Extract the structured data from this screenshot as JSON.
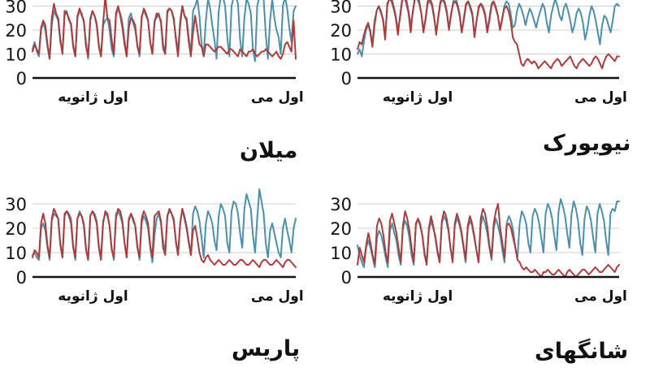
{
  "chart_data": [
    {
      "type": "line",
      "title": "میلان",
      "x_labels": [
        "اول ژانویه",
        "اول می"
      ],
      "ylim": [
        0,
        40
      ],
      "yticks": [
        0,
        10,
        20,
        30
      ],
      "series": [
        {
          "color": "#4a90ad",
          "values": [
            12,
            15,
            11,
            9,
            20,
            23,
            20,
            13,
            8,
            22,
            28,
            26,
            24,
            15,
            11,
            26,
            28,
            24,
            23,
            14,
            9,
            25,
            28,
            27,
            23,
            15,
            8,
            25,
            28,
            26,
            23,
            14,
            9,
            22,
            24,
            25,
            20,
            12,
            9,
            26,
            29,
            27,
            23,
            16,
            9,
            25,
            27,
            23,
            20,
            14,
            9,
            26,
            28,
            26,
            24,
            15,
            10,
            24,
            25,
            27,
            23,
            12,
            10,
            27,
            29,
            28,
            24,
            17,
            11,
            24,
            30,
            26,
            25,
            17,
            10,
            28,
            30,
            33,
            26,
            14,
            10,
            24,
            33,
            29,
            22,
            16,
            8,
            28,
            36,
            35,
            30,
            17,
            9,
            30,
            40,
            35,
            31,
            16,
            9,
            25,
            33,
            31,
            27,
            12,
            7,
            30,
            35,
            34,
            33,
            18,
            8,
            24,
            33,
            25,
            20,
            17,
            10,
            30,
            34,
            29,
            21,
            15,
            28,
            30
          ]
        },
        {
          "color": "#b03a3a",
          "values": [
            11,
            14,
            12,
            10,
            21,
            24,
            22,
            14,
            8,
            25,
            31,
            27,
            25,
            16,
            10,
            28,
            27,
            25,
            22,
            13,
            9,
            26,
            29,
            26,
            24,
            13,
            9,
            24,
            28,
            26,
            22,
            13,
            9,
            23,
            35,
            25,
            24,
            16,
            10,
            27,
            30,
            26,
            21,
            14,
            9,
            21,
            25,
            24,
            22,
            13,
            10,
            25,
            29,
            27,
            24,
            15,
            10,
            23,
            27,
            26,
            24,
            14,
            10,
            28,
            29,
            28,
            25,
            16,
            9,
            22,
            30,
            26,
            24,
            15,
            9,
            19,
            26,
            20,
            14,
            13,
            9,
            14,
            14,
            13,
            12,
            11,
            12,
            13,
            13,
            12,
            11,
            10,
            12,
            12,
            11,
            10,
            9,
            12,
            11,
            10,
            9,
            11,
            11,
            12,
            10,
            9,
            10,
            11,
            11,
            12,
            11,
            10,
            9,
            10,
            11,
            9,
            8,
            10,
            14,
            15,
            13,
            11,
            24,
            8
          ]
        }
      ]
    },
    {
      "type": "line",
      "title": "نیویورک",
      "x_labels": [
        "اول ژانویه",
        "اول می"
      ],
      "ylim": [
        0,
        30
      ],
      "yticks": [
        0,
        10,
        20,
        30
      ],
      "series": [
        {
          "color": "#4a90ad",
          "values": [
            10,
            12,
            9,
            15,
            20,
            22,
            20,
            14,
            24,
            28,
            30,
            27,
            25,
            17,
            30,
            33,
            34,
            30,
            26,
            20,
            25,
            32,
            35,
            33,
            28,
            22,
            27,
            34,
            33,
            31,
            27,
            20,
            24,
            31,
            32,
            30,
            25,
            19,
            25,
            31,
            33,
            32,
            28,
            21,
            26,
            32,
            34,
            31,
            27,
            19,
            24,
            30,
            32,
            29,
            26,
            18,
            24,
            29,
            31,
            30,
            27,
            20,
            25,
            31,
            32,
            30,
            26,
            20,
            24,
            30,
            32,
            31,
            27,
            21,
            22,
            28,
            31,
            29,
            26,
            22,
            26,
            29,
            27,
            24,
            21,
            25,
            28,
            31,
            29,
            23,
            19,
            26,
            30,
            33,
            30,
            26,
            24,
            29,
            31,
            28,
            24,
            19,
            22,
            27,
            29,
            27,
            23,
            16,
            20,
            26,
            30,
            28,
            24,
            19,
            14,
            22,
            26,
            25,
            22,
            19,
            24,
            30,
            31,
            30
          ]
        },
        {
          "color": "#b03a3a",
          "values": [
            12,
            15,
            14,
            18,
            21,
            23,
            19,
            13,
            22,
            28,
            30,
            28,
            24,
            16,
            31,
            33,
            32,
            29,
            25,
            18,
            26,
            33,
            34,
            31,
            27,
            19,
            28,
            33,
            34,
            32,
            27,
            19,
            25,
            32,
            33,
            31,
            26,
            18,
            26,
            32,
            33,
            31,
            27,
            20,
            27,
            31,
            32,
            30,
            26,
            19,
            25,
            31,
            32,
            30,
            27,
            17,
            24,
            30,
            31,
            29,
            26,
            19,
            24,
            30,
            32,
            29,
            26,
            20,
            25,
            29,
            30,
            28,
            24,
            17,
            15,
            14,
            10,
            6,
            5,
            7,
            8,
            7,
            6,
            7,
            6,
            4,
            5,
            6,
            7,
            6,
            5,
            4,
            6,
            7,
            8,
            7,
            5,
            6,
            7,
            8,
            9,
            7,
            5,
            4,
            6,
            7,
            8,
            7,
            6,
            5,
            6,
            8,
            9,
            8,
            6,
            4,
            7,
            9,
            10,
            9,
            8,
            7,
            9,
            9
          ]
        }
      ]
    },
    {
      "type": "line",
      "title": "پاریس",
      "x_labels": [
        "اول ژانویه",
        "اول می"
      ],
      "ylim": [
        0,
        30
      ],
      "yticks": [
        0,
        10,
        20,
        30
      ],
      "series": [
        {
          "color": "#4a90ad",
          "values": [
            9,
            10,
            8,
            7,
            20,
            22,
            19,
            12,
            7,
            23,
            26,
            25,
            24,
            14,
            8,
            25,
            27,
            26,
            24,
            13,
            7,
            24,
            27,
            25,
            22,
            12,
            7,
            25,
            27,
            26,
            23,
            13,
            8,
            23,
            26,
            25,
            21,
            12,
            7,
            26,
            27,
            25,
            22,
            14,
            8,
            24,
            26,
            23,
            21,
            13,
            7,
            22,
            25,
            23,
            20,
            12,
            6,
            17,
            24,
            26,
            22,
            15,
            10,
            25,
            27,
            26,
            24,
            14,
            9,
            22,
            28,
            25,
            21,
            15,
            9,
            26,
            29,
            27,
            23,
            16,
            8,
            22,
            27,
            25,
            22,
            15,
            11,
            25,
            30,
            28,
            25,
            14,
            10,
            27,
            31,
            30,
            26,
            18,
            12,
            28,
            34,
            31,
            28,
            17,
            10,
            24,
            36,
            31,
            26,
            14,
            8,
            19,
            22,
            18,
            14,
            10,
            8,
            20,
            24,
            19,
            15,
            10,
            20,
            24
          ]
        },
        {
          "color": "#b03a3a",
          "values": [
            8,
            11,
            10,
            8,
            22,
            26,
            22,
            13,
            8,
            24,
            28,
            26,
            24,
            13,
            8,
            26,
            27,
            25,
            22,
            12,
            8,
            24,
            26,
            25,
            21,
            11,
            7,
            25,
            27,
            25,
            22,
            12,
            7,
            22,
            27,
            26,
            21,
            11,
            8,
            24,
            28,
            27,
            23,
            14,
            8,
            23,
            26,
            24,
            21,
            12,
            8,
            24,
            27,
            25,
            22,
            13,
            8,
            25,
            26,
            27,
            23,
            12,
            9,
            25,
            28,
            26,
            23,
            15,
            9,
            22,
            28,
            24,
            20,
            14,
            9,
            19,
            21,
            16,
            10,
            7,
            6,
            8,
            9,
            7,
            6,
            5,
            6,
            7,
            6,
            5,
            5,
            6,
            7,
            6,
            5,
            5,
            6,
            7,
            7,
            6,
            5,
            5,
            6,
            7,
            6,
            5,
            4,
            6,
            7,
            7,
            6,
            5,
            5,
            6,
            7,
            6,
            5,
            4,
            6,
            7,
            7,
            6,
            5,
            4
          ]
        }
      ]
    },
    {
      "type": "line",
      "title": "شانگهای",
      "x_labels": [
        "اول ژانویه",
        "اول می"
      ],
      "ylim": [
        0,
        30
      ],
      "yticks": [
        0,
        10,
        20,
        30
      ],
      "series": [
        {
          "color": "#4a90ad",
          "values": [
            13,
            9,
            6,
            4,
            12,
            15,
            12,
            8,
            4,
            16,
            19,
            17,
            13,
            8,
            4,
            19,
            22,
            18,
            15,
            9,
            5,
            20,
            23,
            21,
            16,
            9,
            5,
            21,
            24,
            22,
            17,
            10,
            6,
            19,
            23,
            20,
            17,
            11,
            6,
            22,
            25,
            23,
            19,
            12,
            7,
            21,
            24,
            22,
            18,
            12,
            6,
            20,
            23,
            21,
            16,
            11,
            6,
            21,
            25,
            22,
            18,
            12,
            7,
            20,
            24,
            21,
            17,
            11,
            6,
            22,
            25,
            23,
            19,
            12,
            8,
            22,
            27,
            25,
            22,
            14,
            10,
            25,
            28,
            26,
            22,
            16,
            10,
            26,
            30,
            28,
            24,
            17,
            11,
            27,
            32,
            29,
            25,
            18,
            12,
            26,
            31,
            28,
            23,
            14,
            9,
            24,
            29,
            27,
            23,
            16,
            10,
            26,
            30,
            27,
            23,
            15,
            9,
            26,
            28,
            27,
            31,
            31
          ]
        },
        {
          "color": "#b03a3a",
          "values": [
            5,
            12,
            9,
            6,
            13,
            18,
            14,
            9,
            5,
            21,
            24,
            22,
            17,
            10,
            6,
            23,
            26,
            22,
            18,
            12,
            6,
            21,
            27,
            24,
            19,
            12,
            6,
            22,
            24,
            21,
            17,
            9,
            5,
            20,
            25,
            21,
            16,
            10,
            6,
            23,
            27,
            25,
            20,
            12,
            6,
            22,
            26,
            23,
            19,
            13,
            7,
            21,
            25,
            22,
            17,
            11,
            6,
            24,
            28,
            26,
            21,
            13,
            8,
            22,
            27,
            30,
            20,
            14,
            8,
            21,
            22,
            20,
            16,
            12,
            7,
            6,
            4,
            3,
            4,
            3,
            2,
            2,
            3,
            2,
            1,
            0,
            2,
            2,
            3,
            2,
            1,
            1,
            2,
            3,
            2,
            1,
            0,
            2,
            3,
            2,
            1,
            0,
            1,
            2,
            3,
            3,
            2,
            1,
            2,
            3,
            4,
            3,
            2,
            2,
            3,
            4,
            5,
            4,
            3,
            2,
            4,
            5
          ]
        }
      ]
    }
  ]
}
